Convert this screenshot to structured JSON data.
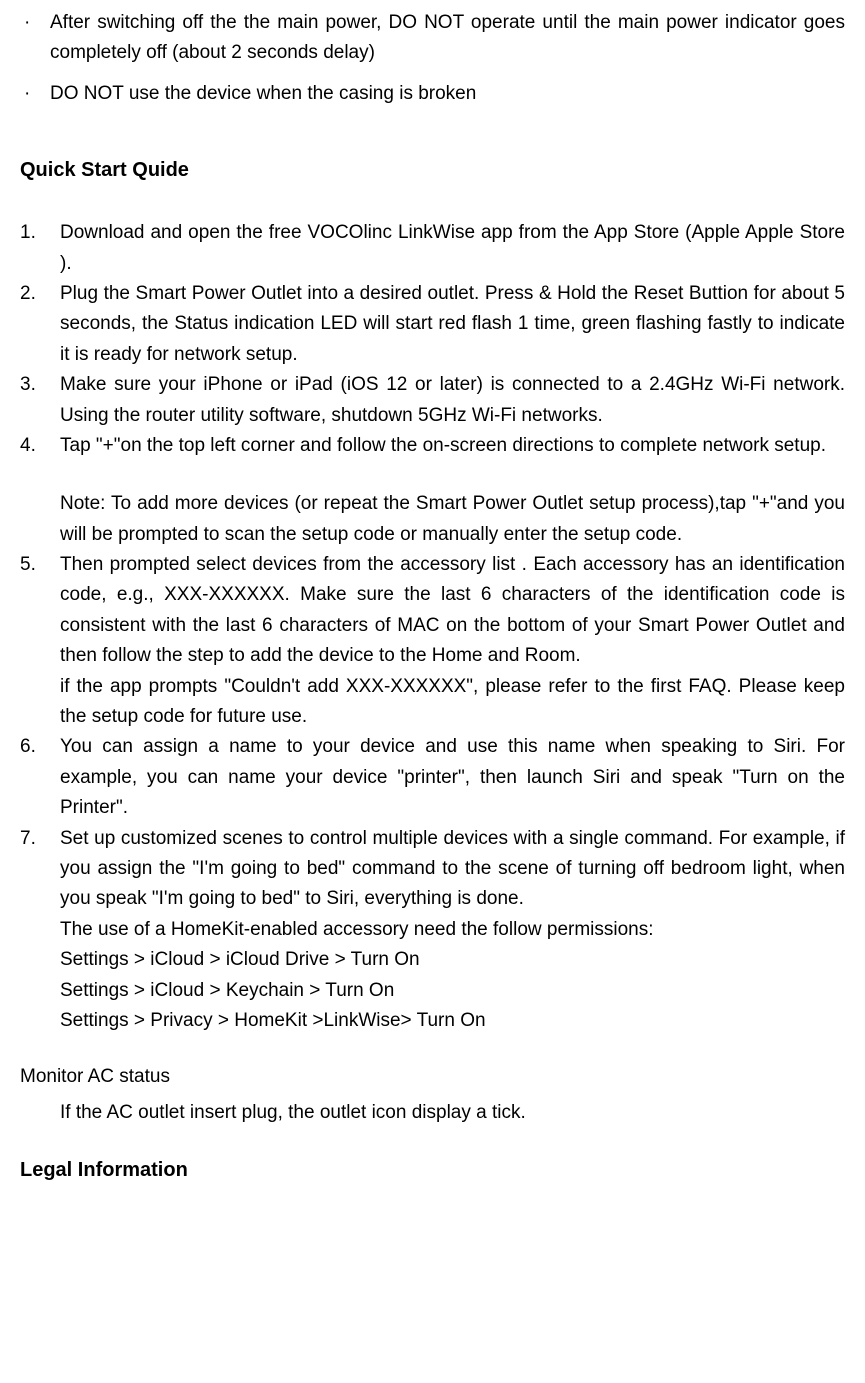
{
  "colors": {
    "background": "#ffffff",
    "text": "#000000"
  },
  "typography": {
    "body_fontsize": 19,
    "heading_fontsize": 20,
    "font_family": "Tahoma, Verdana, sans-serif",
    "line_height": 1.6
  },
  "bullets": [
    "After switching off the the main power, DO NOT operate until the main power indicator goes completely off (about 2 seconds delay)",
    "DO NOT use the device when the casing is broken"
  ],
  "quick_start_heading": "Quick Start Quide",
  "steps": [
    {
      "num": "1.",
      "paras": [
        "Download and open the free VOCOlinc LinkWise app from the App Store (Apple Apple Store )."
      ]
    },
    {
      "num": "2.",
      "paras": [
        "Plug the Smart Power Outlet into a desired outlet. Press & Hold the Reset Buttion for about 5 seconds, the Status indication LED will start red flash 1 time, green flashing fastly  to indicate it is ready for network setup."
      ]
    },
    {
      "num": "3.",
      "paras": [
        "Make sure your iPhone or iPad (iOS 12 or later) is connected to a 2.4GHz Wi-Fi network. Using the router utility software, shutdown 5GHz Wi-Fi networks."
      ]
    },
    {
      "num": "4.",
      "paras": [
        "Tap \"+\"on the top left corner and follow the on-screen directions to complete network setup.",
        "__GAP__",
        "Note: To add more devices (or repeat the Smart Power Outlet setup process),tap \"+\"and you will be prompted to scan the setup code or manually enter the setup code."
      ]
    },
    {
      "num": "5.",
      "paras": [
        "Then prompted select devices from the accessory list . Each accessory has an identification code, e.g., XXX-XXXXXX. Make sure the last 6 characters of the identification code is consistent with the last 6 characters of MAC on the bottom of your Smart Power Outlet and then follow the step to add the device to the Home and Room.",
        "if the app prompts \"Couldn't add XXX-XXXXXX\", please refer to the first FAQ. Please keep the setup code for future use."
      ]
    },
    {
      "num": "6.",
      "paras": [
        "You can assign a name to your device and use this name when speaking to Siri. For example, you can name your device \"printer\", then launch Siri and speak \"Turn on the Printer\"."
      ]
    },
    {
      "num": "7.",
      "paras": [
        "Set up customized scenes to control multiple devices with a single command. For example, if you assign the \"I'm going to bed\" command to the scene of turning off bedroom light, when you speak \"I'm going to bed\" to Siri, everything is done.",
        "The use of a HomeKit-enabled accessory need the follow permissions:",
        "Settings > iCloud > iCloud Drive > Turn On",
        "Settings > iCloud > Keychain > Turn On",
        "Settings > Privacy > HomeKit >LinkWise> Turn On"
      ]
    }
  ],
  "monitor_heading": "Monitor AC status",
  "monitor_text": "If the AC outlet insert plug, the outlet icon display a tick.",
  "legal_heading": "Legal Information"
}
